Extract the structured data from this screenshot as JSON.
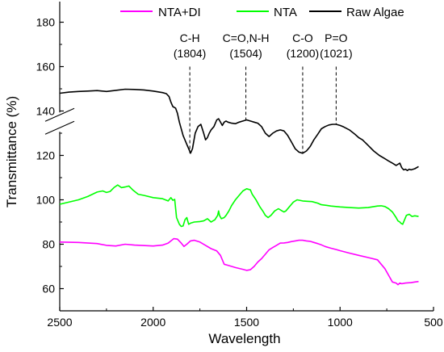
{
  "chart_data": {
    "type": "line",
    "title": "",
    "xlabel": "Wavelength",
    "ylabel": "Transmittance (%)",
    "xlim": [
      2500,
      500
    ],
    "ylim": [
      50,
      190
    ],
    "x_reversed": true,
    "axis_break_y": 135,
    "grid": false,
    "legend_position": "top",
    "x_ticks": [
      {
        "value": 2500,
        "label": "2500"
      },
      {
        "value": 2000,
        "label": "2000"
      },
      {
        "value": 1500,
        "label": "1500"
      },
      {
        "value": 1000,
        "label": "1000"
      },
      {
        "value": 500,
        "label": "500"
      }
    ],
    "y_ticks": [
      {
        "value": 60,
        "label": "60"
      },
      {
        "value": 80,
        "label": "80"
      },
      {
        "value": 100,
        "label": "100"
      },
      {
        "value": 120,
        "label": "120"
      },
      {
        "value": 140,
        "label": "140"
      },
      {
        "value": 160,
        "label": "160"
      },
      {
        "value": 180,
        "label": "180"
      }
    ],
    "series": [
      {
        "name": "NTA+DI",
        "color": "#ff00ff",
        "points": [
          [
            2500,
            81
          ],
          [
            2400,
            80.8
          ],
          [
            2300,
            80.3
          ],
          [
            2250,
            79.5
          ],
          [
            2200,
            79.2
          ],
          [
            2150,
            80
          ],
          [
            2100,
            79.6
          ],
          [
            2000,
            79.2
          ],
          [
            1950,
            79.6
          ],
          [
            1920,
            80.5
          ],
          [
            1890,
            82.5
          ],
          [
            1870,
            82.3
          ],
          [
            1850,
            80.5
          ],
          [
            1835,
            79
          ],
          [
            1820,
            80
          ],
          [
            1800,
            81.5
          ],
          [
            1780,
            81.8
          ],
          [
            1750,
            81
          ],
          [
            1720,
            79.5
          ],
          [
            1690,
            78
          ],
          [
            1660,
            77
          ],
          [
            1640,
            75
          ],
          [
            1620,
            71
          ],
          [
            1600,
            70.5
          ],
          [
            1560,
            69.5
          ],
          [
            1520,
            68.7
          ],
          [
            1500,
            68.2
          ],
          [
            1480,
            68.5
          ],
          [
            1460,
            70
          ],
          [
            1440,
            72
          ],
          [
            1420,
            73.5
          ],
          [
            1400,
            75.5
          ],
          [
            1380,
            77.5
          ],
          [
            1360,
            78.5
          ],
          [
            1340,
            79.5
          ],
          [
            1320,
            80.5
          ],
          [
            1300,
            80.6
          ],
          [
            1280,
            80.8
          ],
          [
            1260,
            81.2
          ],
          [
            1240,
            81.5
          ],
          [
            1220,
            81.8
          ],
          [
            1200,
            81.8
          ],
          [
            1180,
            81.5
          ],
          [
            1160,
            81.3
          ],
          [
            1140,
            80.8
          ],
          [
            1120,
            80.3
          ],
          [
            1100,
            79.7
          ],
          [
            1080,
            79
          ],
          [
            1050,
            78.2
          ],
          [
            1020,
            77.6
          ],
          [
            1000,
            77.1
          ],
          [
            950,
            76
          ],
          [
            900,
            75
          ],
          [
            850,
            74
          ],
          [
            800,
            73
          ],
          [
            780,
            71
          ],
          [
            760,
            69
          ],
          [
            740,
            66
          ],
          [
            720,
            63
          ],
          [
            700,
            62.5
          ],
          [
            690,
            61.8
          ],
          [
            680,
            62.5
          ],
          [
            670,
            62.2
          ],
          [
            650,
            62.5
          ],
          [
            620,
            62.7
          ],
          [
            600,
            63
          ],
          [
            580,
            63.2
          ]
        ]
      },
      {
        "name": "NTA",
        "color": "#00ff00",
        "points": [
          [
            2500,
            98
          ],
          [
            2400,
            100
          ],
          [
            2350,
            101.5
          ],
          [
            2300,
            103.5
          ],
          [
            2270,
            104
          ],
          [
            2250,
            103.3
          ],
          [
            2230,
            103.8
          ],
          [
            2210,
            105.5
          ],
          [
            2190,
            106.7
          ],
          [
            2170,
            105.5
          ],
          [
            2150,
            105.8
          ],
          [
            2130,
            106.2
          ],
          [
            2110,
            104.5
          ],
          [
            2080,
            102.5
          ],
          [
            2050,
            102
          ],
          [
            2000,
            101
          ],
          [
            1950,
            100.5
          ],
          [
            1920,
            99.5
          ],
          [
            1905,
            101
          ],
          [
            1895,
            99.8
          ],
          [
            1885,
            100.2
          ],
          [
            1875,
            92
          ],
          [
            1860,
            89
          ],
          [
            1850,
            88
          ],
          [
            1840,
            88.2
          ],
          [
            1830,
            91
          ],
          [
            1820,
            92
          ],
          [
            1810,
            89
          ],
          [
            1800,
            89.5
          ],
          [
            1780,
            90
          ],
          [
            1750,
            90.2
          ],
          [
            1730,
            90.5
          ],
          [
            1710,
            91.5
          ],
          [
            1690,
            90
          ],
          [
            1680,
            90.5
          ],
          [
            1670,
            91
          ],
          [
            1655,
            93
          ],
          [
            1650,
            95
          ],
          [
            1645,
            93
          ],
          [
            1635,
            91.5
          ],
          [
            1620,
            92
          ],
          [
            1610,
            93
          ],
          [
            1595,
            95
          ],
          [
            1580,
            97.5
          ],
          [
            1560,
            100
          ],
          [
            1540,
            102
          ],
          [
            1520,
            104
          ],
          [
            1500,
            105
          ],
          [
            1480,
            104.5
          ],
          [
            1470,
            102.5
          ],
          [
            1450,
            100
          ],
          [
            1430,
            97
          ],
          [
            1410,
            94.5
          ],
          [
            1400,
            93
          ],
          [
            1385,
            92
          ],
          [
            1370,
            93
          ],
          [
            1350,
            95
          ],
          [
            1330,
            96
          ],
          [
            1310,
            95
          ],
          [
            1300,
            94.5
          ],
          [
            1290,
            95
          ],
          [
            1270,
            97
          ],
          [
            1250,
            99
          ],
          [
            1230,
            100
          ],
          [
            1200,
            99.5
          ],
          [
            1170,
            99.3
          ],
          [
            1150,
            99.2
          ],
          [
            1120,
            98.5
          ],
          [
            1100,
            97.8
          ],
          [
            1070,
            97.5
          ],
          [
            1050,
            97.2
          ],
          [
            1000,
            96.8
          ],
          [
            950,
            96.5
          ],
          [
            900,
            96.3
          ],
          [
            850,
            96.5
          ],
          [
            800,
            97.2
          ],
          [
            780,
            97.3
          ],
          [
            760,
            97
          ],
          [
            740,
            96
          ],
          [
            720,
            94.5
          ],
          [
            700,
            92
          ],
          [
            690,
            90.5
          ],
          [
            680,
            90
          ],
          [
            675,
            89.5
          ],
          [
            665,
            89
          ],
          [
            655,
            91
          ],
          [
            645,
            93
          ],
          [
            630,
            93.5
          ],
          [
            615,
            92.5
          ],
          [
            600,
            92.8
          ],
          [
            580,
            92.5
          ]
        ]
      },
      {
        "name": "Raw Algae",
        "color": "#000000",
        "points": [
          [
            2500,
            148
          ],
          [
            2450,
            148.5
          ],
          [
            2400,
            148.8
          ],
          [
            2350,
            149
          ],
          [
            2300,
            149.2
          ],
          [
            2250,
            148.8
          ],
          [
            2200,
            149.3
          ],
          [
            2150,
            149.8
          ],
          [
            2100,
            149.7
          ],
          [
            2050,
            149.5
          ],
          [
            2000,
            149
          ],
          [
            1950,
            148.3
          ],
          [
            1930,
            147.8
          ],
          [
            1915,
            146.5
          ],
          [
            1905,
            144
          ],
          [
            1895,
            142
          ],
          [
            1880,
            141.3
          ],
          [
            1870,
            139
          ],
          [
            1860,
            135
          ],
          [
            1840,
            129
          ],
          [
            1820,
            125
          ],
          [
            1805,
            122
          ],
          [
            1800,
            121
          ],
          [
            1790,
            123
          ],
          [
            1775,
            130
          ],
          [
            1760,
            133
          ],
          [
            1745,
            134
          ],
          [
            1730,
            130
          ],
          [
            1720,
            127
          ],
          [
            1710,
            128
          ],
          [
            1700,
            130
          ],
          [
            1690,
            131.5
          ],
          [
            1675,
            133
          ],
          [
            1660,
            136
          ],
          [
            1650,
            136.5
          ],
          [
            1640,
            135
          ],
          [
            1630,
            133.5
          ],
          [
            1620,
            135
          ],
          [
            1610,
            135.5
          ],
          [
            1600,
            135
          ],
          [
            1580,
            134.5
          ],
          [
            1560,
            134.3
          ],
          [
            1540,
            135
          ],
          [
            1520,
            135.5
          ],
          [
            1500,
            136
          ],
          [
            1480,
            135.5
          ],
          [
            1460,
            135
          ],
          [
            1440,
            134.5
          ],
          [
            1420,
            133
          ],
          [
            1400,
            130
          ],
          [
            1380,
            128.5
          ],
          [
            1360,
            130
          ],
          [
            1340,
            131
          ],
          [
            1320,
            131.5
          ],
          [
            1300,
            131
          ],
          [
            1280,
            129
          ],
          [
            1260,
            126
          ],
          [
            1240,
            123
          ],
          [
            1220,
            121.5
          ],
          [
            1200,
            121
          ],
          [
            1180,
            122
          ],
          [
            1160,
            124
          ],
          [
            1140,
            127
          ],
          [
            1120,
            129.5
          ],
          [
            1100,
            132
          ],
          [
            1080,
            133
          ],
          [
            1060,
            133.7
          ],
          [
            1040,
            134
          ],
          [
            1021,
            134
          ],
          [
            1000,
            133.5
          ],
          [
            980,
            132.8
          ],
          [
            950,
            131.5
          ],
          [
            920,
            129.5
          ],
          [
            900,
            128
          ],
          [
            880,
            127
          ],
          [
            850,
            124.5
          ],
          [
            820,
            122
          ],
          [
            790,
            120
          ],
          [
            760,
            118.5
          ],
          [
            740,
            117.5
          ],
          [
            720,
            116.5
          ],
          [
            700,
            115.5
          ],
          [
            690,
            116
          ],
          [
            680,
            116.5
          ],
          [
            670,
            114.5
          ],
          [
            660,
            113.5
          ],
          [
            650,
            113.8
          ],
          [
            640,
            113.2
          ],
          [
            630,
            113.8
          ],
          [
            620,
            113.5
          ],
          [
            600,
            114
          ],
          [
            580,
            115
          ]
        ]
      }
    ],
    "annotations": [
      {
        "label": "C-H",
        "value_label": "(1804)",
        "x": 1804,
        "y_start": 160,
        "y_end": 121
      },
      {
        "label": "C=O,N-H",
        "value_label": "(1504)",
        "x": 1504,
        "y_start": 160,
        "y_end": 136
      },
      {
        "label": "C-O",
        "value_label": "(1200)",
        "x": 1200,
        "y_start": 160,
        "y_end": 121
      },
      {
        "label": "P=O",
        "value_label": "(1021)",
        "x": 1021,
        "y_start": 160,
        "y_end": 134
      }
    ]
  }
}
